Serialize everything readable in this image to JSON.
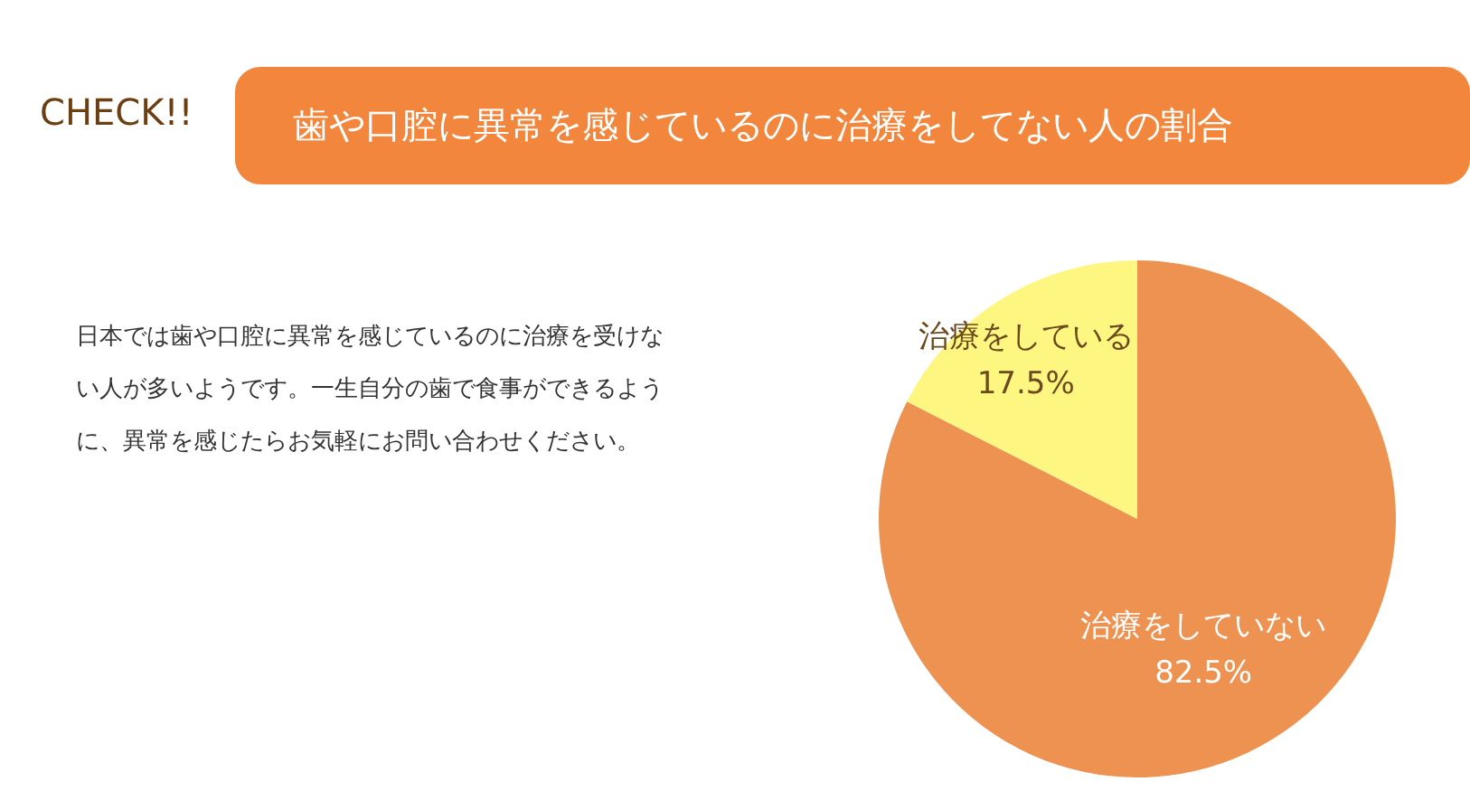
{
  "chart_data": {
    "type": "pie",
    "title": "歯や口腔に異常を感じているのに治療をしてない人の割合",
    "annotations": [
      "CHECK!!",
      "日本では歯や口腔に異常を感じているのに治療を受けない人が多いようです。一生自分の歯で食事ができるように、異常を感じたらお気軽にお問い合わせください。"
    ],
    "categories": [
      "治療をしていない",
      "治療をしている"
    ],
    "values": [
      82.5,
      17.5
    ],
    "colors": [
      "#ee9252",
      "#fdf681"
    ],
    "value_labels": [
      "82.5%",
      "17.5%"
    ]
  }
}
